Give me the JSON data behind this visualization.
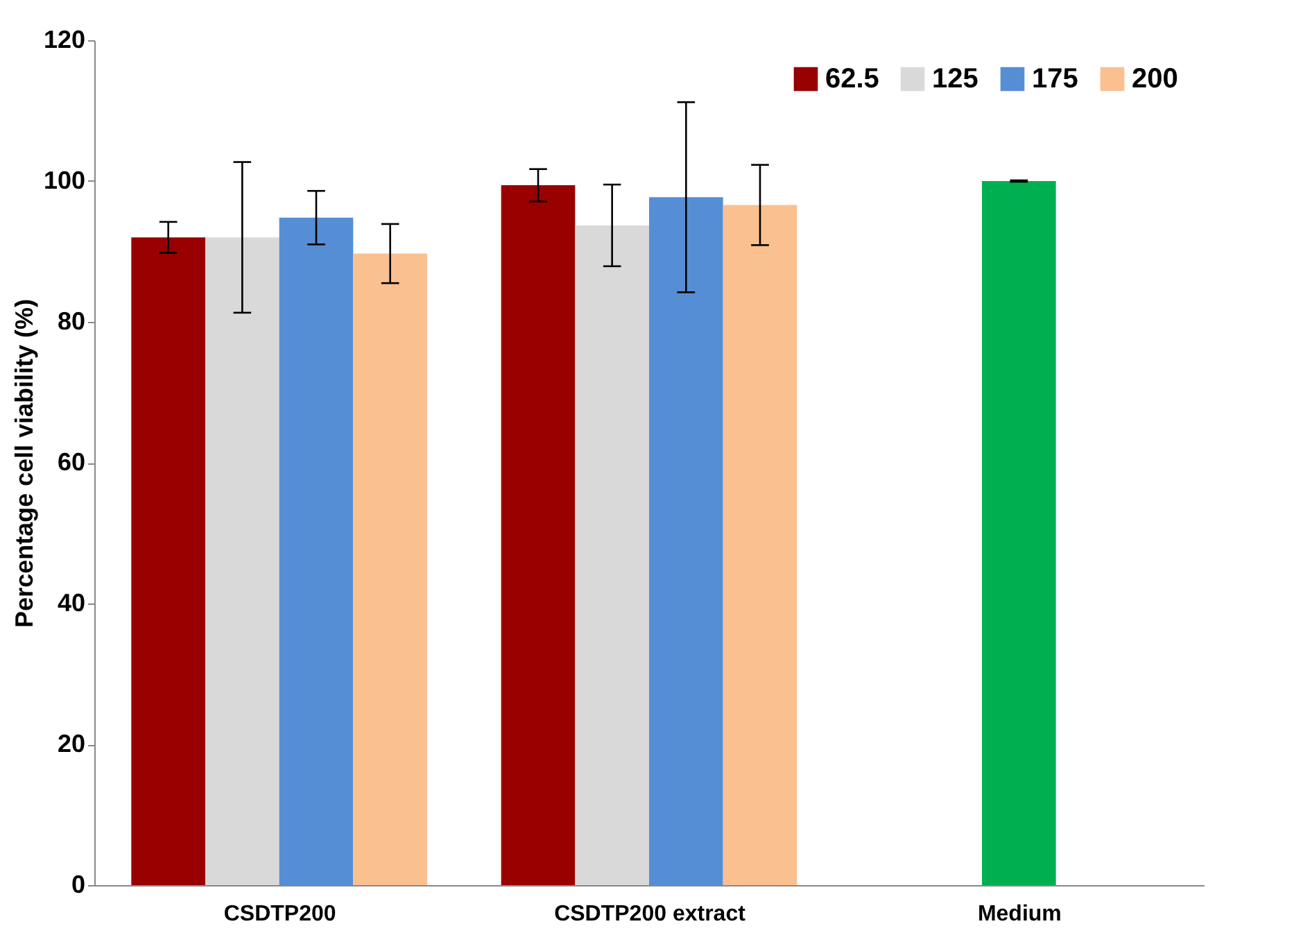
{
  "chart_data": {
    "type": "bar",
    "ylabel": "Percentage cell viability (%)",
    "categories": [
      "CSDTP200",
      "CSDTP200 extract",
      "Medium"
    ],
    "series": [
      {
        "name": "62.5",
        "color": "#990000",
        "values": [
          92.0,
          99.4,
          null
        ],
        "errors": [
          2.2,
          2.3,
          null
        ]
      },
      {
        "name": "125",
        "color": "#d9d9d9",
        "values": [
          92.0,
          93.7,
          null
        ],
        "errors": [
          10.7,
          5.8,
          null
        ]
      },
      {
        "name": "175",
        "color": "#558ed5",
        "values": [
          94.8,
          97.7,
          null
        ],
        "errors": [
          3.8,
          13.5,
          null
        ]
      },
      {
        "name": "200",
        "color": "#fac090",
        "values": [
          89.7,
          96.6,
          null
        ],
        "errors": [
          4.2,
          5.7,
          null
        ]
      },
      {
        "color": "#00b050",
        "values": [
          null,
          null,
          100
        ],
        "errors": [
          null,
          null,
          0.1
        ]
      }
    ],
    "ylim": [
      0,
      120
    ],
    "yticks": [
      0,
      20,
      40,
      60,
      80,
      100,
      120
    ],
    "grid": false,
    "legend": "top right"
  }
}
